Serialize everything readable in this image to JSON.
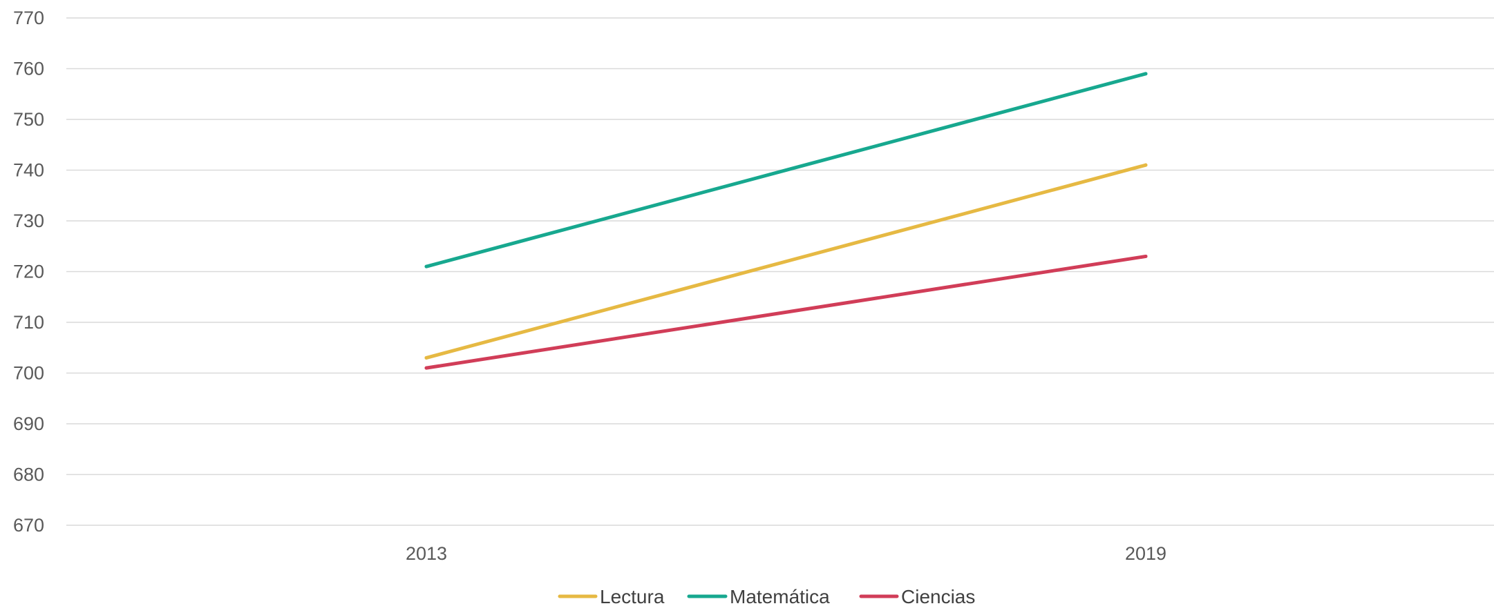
{
  "chart_data": {
    "type": "line",
    "title": "",
    "xlabel": "",
    "ylabel": "",
    "categories": [
      "2013",
      "2019"
    ],
    "ylim": [
      670,
      770
    ],
    "yticks": [
      670,
      680,
      690,
      700,
      710,
      720,
      730,
      740,
      750,
      760,
      770
    ],
    "grid": true,
    "legend_position": "bottom",
    "series": [
      {
        "name": "Lectura",
        "color": "#E6B943",
        "values": [
          703,
          741
        ]
      },
      {
        "name": "Matemática",
        "color": "#17A88F",
        "values": [
          721,
          759
        ]
      },
      {
        "name": "Ciencias",
        "color": "#D13D58",
        "values": [
          701,
          723
        ]
      }
    ]
  }
}
